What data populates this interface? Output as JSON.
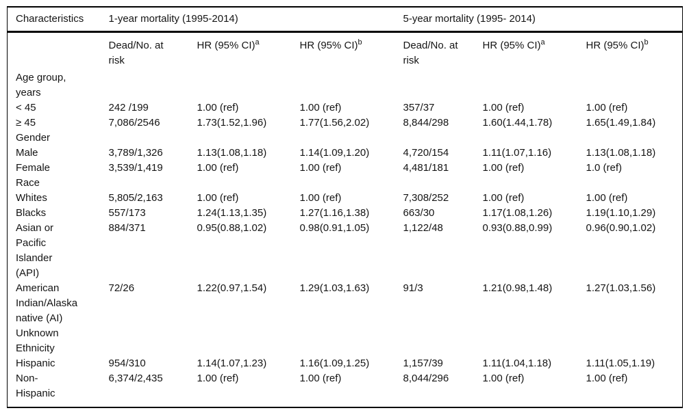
{
  "table": {
    "header": {
      "characteristics": "Characteristics",
      "group_1yr": "1-year mortality (1995-2014)",
      "group_5yr": "5-year mortality (1995- 2014)"
    },
    "subheader": {
      "dead_label": "Dead/No. at\nrisk",
      "hr_label": "HR (95% CI)",
      "sup_a": "a",
      "sup_b": "b"
    },
    "rows": [
      {
        "label": "Age group,\nyears",
        "cells": [
          "",
          "",
          "",
          "",
          "",
          ""
        ]
      },
      {
        "label": "< 45",
        "cells": [
          "242 /199",
          "1.00 (ref)",
          "1.00 (ref)",
          "357/37",
          "1.00 (ref)",
          "1.00 (ref)"
        ]
      },
      {
        "label": "≥ 45",
        "cells": [
          "7,086/2546",
          "1.73(1.52,1.96)",
          "1.77(1.56,2.02)",
          "8,844/298",
          "1.60(1.44,1.78)",
          "1.65(1.49,1.84)"
        ]
      },
      {
        "label": "Gender",
        "cells": [
          "",
          "",
          "",
          "",
          "",
          ""
        ]
      },
      {
        "label": "Male",
        "cells": [
          "3,789/1,326",
          "1.13(1.08,1.18)",
          "1.14(1.09,1.20)",
          "4,720/154",
          "1.11(1.07,1.16)",
          "1.13(1.08,1.18)"
        ]
      },
      {
        "label": "Female",
        "cells": [
          "3,539/1,419",
          "1.00 (ref)",
          "1.00 (ref)",
          "4,481/181",
          "1.00 (ref)",
          "1.0 (ref)"
        ]
      },
      {
        "label": "Race",
        "cells": [
          "",
          "",
          "",
          "",
          "",
          ""
        ]
      },
      {
        "label": "Whites",
        "cells": [
          "5,805/2,163",
          "1.00 (ref)",
          "1.00 (ref)",
          "7,308/252",
          "1.00 (ref)",
          "1.00 (ref)"
        ]
      },
      {
        "label": "Blacks",
        "cells": [
          "557/173",
          "1.24(1.13,1.35)",
          "1.27(1.16,1.38)",
          "663/30",
          "1.17(1.08,1.26)",
          "1.19(1.10,1.29)"
        ]
      },
      {
        "label": "Asian or\nPacific\nIslander\n(API)",
        "cells": [
          "884/371",
          "0.95(0.88,1.02)",
          "0.98(0.91,1.05)",
          "1,122/48",
          "0.93(0.88,0.99)",
          "0.96(0.90,1.02)"
        ]
      },
      {
        "label": "American\nIndian/Alaska\nnative (AI)",
        "cells": [
          "72/26",
          "1.22(0.97,1.54)",
          "1.29(1.03,1.63)",
          "91/3",
          "1.21(0.98,1.48)",
          "1.27(1.03,1.56)"
        ]
      },
      {
        "label": "Unknown",
        "cells": [
          "",
          "",
          "",
          "",
          "",
          ""
        ]
      },
      {
        "label": "Ethnicity",
        "cells": [
          "",
          "",
          "",
          "",
          "",
          ""
        ]
      },
      {
        "label": "Hispanic",
        "cells": [
          "954/310",
          "1.14(1.07,1.23)",
          "1.16(1.09,1.25)",
          "1,157/39",
          "1.11(1.04,1.18)",
          "1.11(1.05,1.19)"
        ]
      },
      {
        "label": "Non-\nHispanic",
        "cells": [
          "6,374/2,435",
          "1.00 (ref)",
          "1.00 (ref)",
          "8,044/296",
          "1.00 (ref)",
          "1.00 (ref)"
        ]
      }
    ]
  },
  "colors": {
    "text": "#141414",
    "border": "#000000",
    "background": "#ffffff"
  }
}
